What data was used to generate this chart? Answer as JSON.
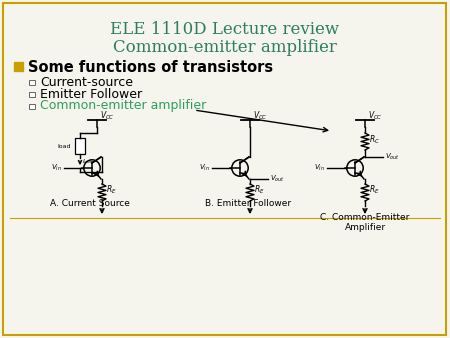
{
  "title_line1": "ELE 1110D Lecture review",
  "title_line2": "Common-emitter amplifier",
  "title_color": "#2E7D5E",
  "bullet_color": "#C8A000",
  "bullet_text": "Some functions of transistors",
  "bullet_text_color": "#000000",
  "sub_items": [
    "Current-source",
    "Emitter Follower",
    "Common-emitter amplifier"
  ],
  "sub_item_colors": [
    "#000000",
    "#000000",
    "#2E9E5E"
  ],
  "bg_color": "#F5F5EE",
  "border_color": "#C8A000",
  "label_A": "A. Current Source",
  "label_B": "B. Emitter Follower",
  "label_C": "C. Common-Emitter\nAmplifier"
}
